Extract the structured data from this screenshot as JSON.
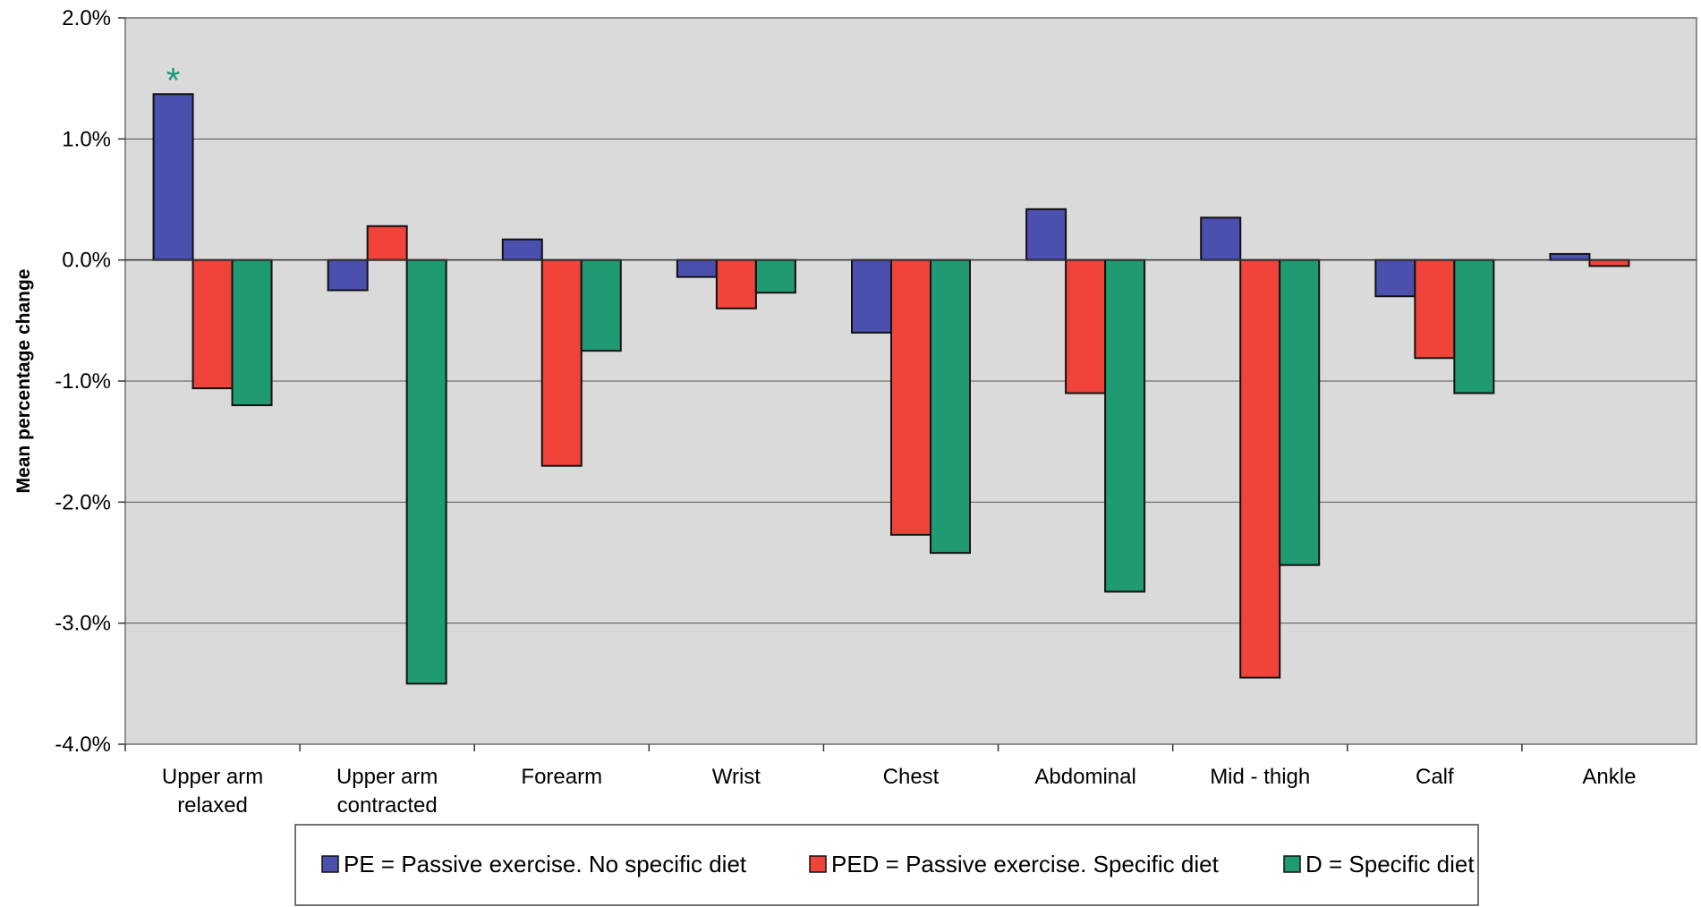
{
  "chart_data": {
    "type": "bar",
    "title": "",
    "xlabel": "",
    "ylabel": "Mean percentage change",
    "ylim": [
      -4.0,
      2.0
    ],
    "yticks": [
      "2.0%",
      "1.0%",
      "0.0%",
      "-1.0%",
      "-2.0%",
      "-3.0%",
      "-4.0%"
    ],
    "grid": true,
    "legend_position": "bottom",
    "categories": [
      [
        "Upper arm",
        "relaxed"
      ],
      [
        "Upper arm",
        "contracted"
      ],
      [
        "Forearm"
      ],
      [
        "Wrist"
      ],
      [
        "Chest"
      ],
      [
        "Abdominal"
      ],
      [
        "Mid - thigh"
      ],
      [
        "Calf"
      ],
      [
        "Ankle"
      ]
    ],
    "series": [
      {
        "name": "PE = Passive exercise. No specific diet",
        "color": "#4b4fae",
        "values": [
          1.37,
          -0.25,
          0.17,
          -0.14,
          -0.6,
          0.42,
          0.35,
          -0.3,
          0.05
        ]
      },
      {
        "name": "PED = Passive exercise. Specific diet",
        "color": "#f0443a",
        "values": [
          -1.06,
          0.28,
          -1.7,
          -0.4,
          -2.27,
          -1.1,
          -3.45,
          -0.81,
          -0.05
        ]
      },
      {
        "name": "D = Specific diet",
        "color": "#1f9a72",
        "values": [
          -1.2,
          -3.5,
          -0.75,
          -0.27,
          -2.42,
          -2.74,
          -2.52,
          -1.1,
          0.0
        ]
      }
    ],
    "annotations": [
      {
        "text": "*",
        "category_index": 0,
        "series_index": 0,
        "color": "#1a9a74"
      }
    ],
    "colors": {
      "plot_background": "#dadada",
      "gridline": "#555555"
    }
  }
}
